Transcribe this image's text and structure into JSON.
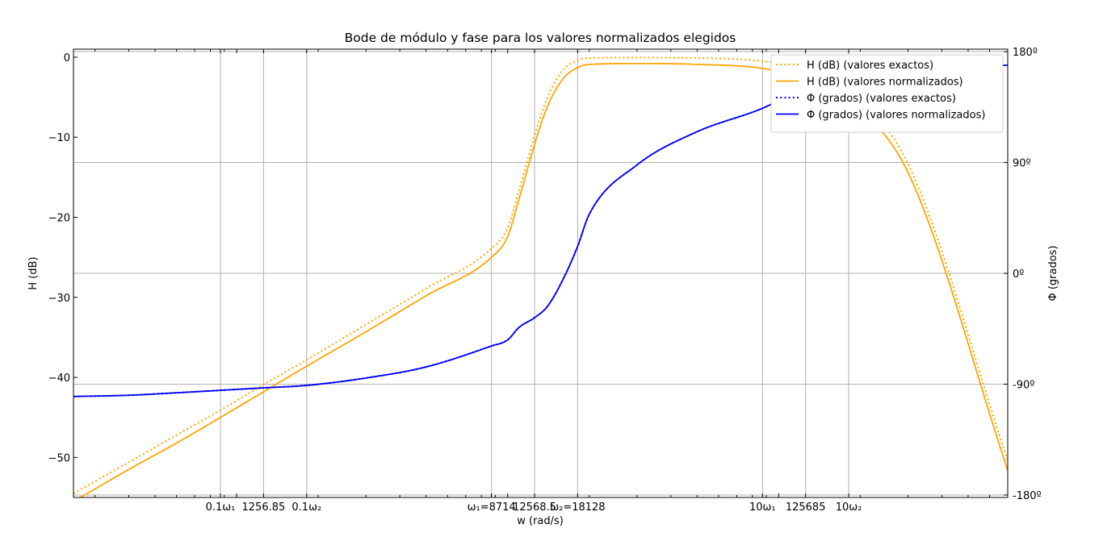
{
  "chart_data": {
    "type": "line",
    "title": "Bode de módulo y fase para los valores normalizados elegidos",
    "xlabel": "w (rad/s)",
    "ylabel": "H (dB)",
    "ylabel_right": "Φ (grados)",
    "xscale": "log",
    "xlim": [
      250,
      700000
    ],
    "ylim": [
      -55,
      1
    ],
    "ylim_right": [
      -182,
      182
    ],
    "grid": true,
    "legend_position": "top-right",
    "x_ticks": [
      {
        "x": 871.4,
        "label": "0.1ω₁"
      },
      {
        "x": 1256.85,
        "label": "1256.85"
      },
      {
        "x": 1812.8,
        "label": "0.1ω₂"
      },
      {
        "x": 8714,
        "label": "ω₁=8714"
      },
      {
        "x": 12568.5,
        "label": "12568.5"
      },
      {
        "x": 18128,
        "label": "ω₂=18128"
      },
      {
        "x": 87140,
        "label": "10ω₁"
      },
      {
        "x": 125685,
        "label": "125685"
      },
      {
        "x": 181280,
        "label": "10ω₂"
      }
    ],
    "y_ticks": [
      {
        "y": 0,
        "label": "0"
      },
      {
        "y": -10,
        "label": "−10"
      },
      {
        "y": -20,
        "label": "−20"
      },
      {
        "y": -30,
        "label": "−30"
      },
      {
        "y": -40,
        "label": "−40"
      },
      {
        "y": -50,
        "label": "−50"
      }
    ],
    "y_ticks_right": [
      {
        "y": 180,
        "label": "180º"
      },
      {
        "y": 90,
        "label": "90º"
      },
      {
        "y": 0,
        "label": "0º"
      },
      {
        "y": -90,
        "label": "-90º"
      },
      {
        "y": -180,
        "label": "-180º"
      }
    ],
    "series": [
      {
        "name": "H (dB) (valores exactos)",
        "axis": "left",
        "color": "#ffa500",
        "style": "dotted",
        "x": [
          250,
          400,
          600,
          871.4,
          1256.85,
          1812.8,
          3000,
          5000,
          8714,
          10000,
          11000,
          12568.5,
          14000,
          16000,
          18128,
          20000,
          30000,
          50000,
          87140,
          125685,
          181280,
          300000,
          700000
        ],
        "y": [
          -54.5,
          -50.6,
          -47.2,
          -44.1,
          -40.9,
          -37.8,
          -33.4,
          -28.9,
          -23.9,
          -21.3,
          -16.7,
          -9.8,
          -5.1,
          -1.6,
          -0.4,
          -0.1,
          -0.05,
          -0.1,
          -0.5,
          -1.5,
          -4.4,
          -13.3,
          -50.4
        ]
      },
      {
        "name": "H (dB) (valores normalizados)",
        "axis": "left",
        "color": "#ffa500",
        "style": "solid",
        "x": [
          250,
          400,
          600,
          871.4,
          1256.85,
          1812.8,
          3000,
          5000,
          8714,
          10000,
          11000,
          12568.5,
          14000,
          16000,
          18128,
          20000,
          30000,
          50000,
          87140,
          125685,
          181280,
          300000,
          700000
        ],
        "y": [
          -55.5,
          -51.5,
          -48.2,
          -45,
          -41.8,
          -38.6,
          -34.3,
          -29.8,
          -25,
          -22.4,
          -17.8,
          -10.9,
          -6.2,
          -2.7,
          -1.3,
          -0.9,
          -0.8,
          -0.9,
          -1.4,
          -2.6,
          -5.5,
          -14.4,
          -51.6
        ]
      },
      {
        "name": "Φ (grados) (valores exactos)",
        "axis": "right",
        "color": "#0000ff",
        "style": "dotted",
        "x": [
          250,
          400,
          600,
          871.4,
          1256.85,
          1812.8,
          3000,
          5000,
          8714,
          10000,
          11000,
          12568.5,
          14000,
          16000,
          18128,
          20000,
          30000,
          50000,
          87140,
          125685,
          181280,
          300000,
          700000
        ],
        "y": [
          -100,
          -99,
          -97,
          -95,
          -93,
          -91,
          -85,
          -76,
          -59,
          -54,
          -44,
          -36,
          -27,
          -5,
          22,
          48,
          88,
          115,
          134,
          151,
          160,
          165,
          169
        ]
      },
      {
        "name": "Φ (grados) (valores normalizados)",
        "axis": "right",
        "color": "#0000ff",
        "style": "solid",
        "x": [
          250,
          400,
          600,
          871.4,
          1256.85,
          1812.8,
          3000,
          5000,
          8714,
          10000,
          11000,
          12568.5,
          14000,
          16000,
          18128,
          20000,
          30000,
          50000,
          87140,
          125685,
          181280,
          300000,
          700000
        ],
        "y": [
          -100,
          -99,
          -97,
          -95,
          -93,
          -91,
          -85,
          -76,
          -59,
          -54,
          -44,
          -36,
          -27,
          -5,
          22,
          48,
          88,
          115,
          134,
          151,
          160,
          165,
          169
        ]
      }
    ]
  }
}
